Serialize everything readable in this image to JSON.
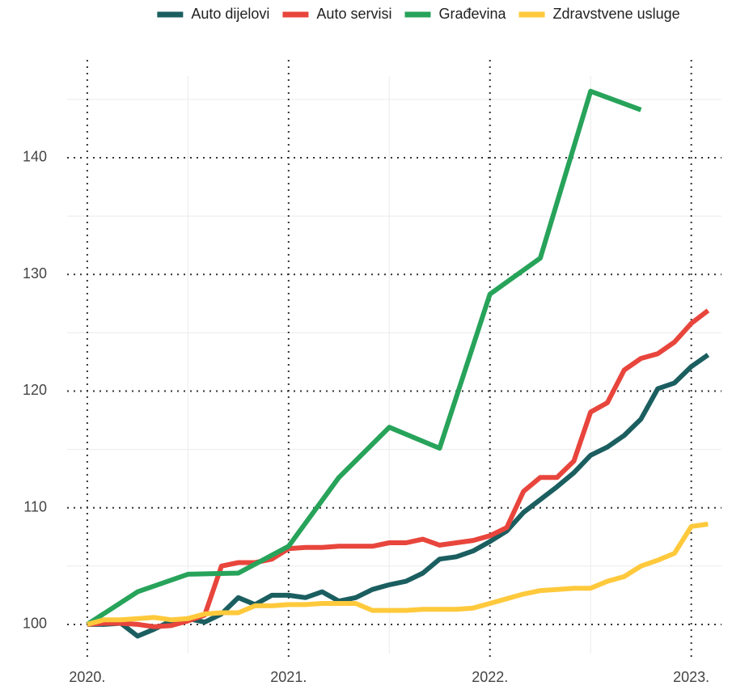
{
  "chart_data": {
    "type": "line",
    "x": [
      2020,
      2020.0833,
      2020.1667,
      2020.25,
      2020.3333,
      2020.4167,
      2020.5,
      2020.5833,
      2020.6667,
      2020.75,
      2020.8333,
      2020.9167,
      2021,
      2021.0833,
      2021.1667,
      2021.25,
      2021.3333,
      2021.4167,
      2021.5,
      2021.5833,
      2021.6667,
      2021.75,
      2021.8333,
      2021.9167,
      2022,
      2022.0833,
      2022.1667,
      2022.25,
      2022.3333,
      2022.4167,
      2022.5,
      2022.5833,
      2022.6667,
      2022.75,
      2022.8333,
      2022.9167,
      2023,
      2023.0833
    ],
    "series": [
      {
        "name": "Auto dijelovi",
        "color": "#1b5e60",
        "values": [
          100,
          100,
          100.1,
          99,
          99.6,
          100.3,
          100.5,
          100.2,
          100.9,
          102.3,
          101.7,
          102.5,
          102.5,
          102.3,
          102.8,
          102,
          102.3,
          103,
          103.4,
          103.7,
          104.4,
          105.6,
          105.8,
          106.3,
          107.1,
          108,
          109.6,
          110.7,
          111.8,
          113,
          114.5,
          115.2,
          116.2,
          117.6,
          120.2,
          120.7,
          122.1,
          123.1
        ]
      },
      {
        "name": "Auto servisi",
        "color": "#e8453c",
        "values": [
          100,
          100.1,
          100.1,
          100,
          99.8,
          99.9,
          100.3,
          100.8,
          105,
          105.3,
          105.3,
          105.6,
          106.5,
          106.6,
          106.6,
          106.7,
          106.7,
          106.7,
          107,
          107,
          107.3,
          106.8,
          107,
          107.2,
          107.6,
          108.3,
          111.4,
          112.6,
          112.6,
          114,
          118.2,
          119,
          121.8,
          122.8,
          123.2,
          124.2,
          125.8,
          126.9
        ]
      },
      {
        "name": "Građevina",
        "color": "#27a35a",
        "x": [
          2020,
          2020.25,
          2020.5,
          2020.75,
          2021,
          2021.25,
          2021.5,
          2021.75,
          2022,
          2022.25,
          2022.5,
          2022.75
        ],
        "values": [
          100,
          102.8,
          104.3,
          104.4,
          106.7,
          112.6,
          116.9,
          115.1,
          128.3,
          131.4,
          145.7,
          144.1
        ]
      },
      {
        "name": "Zdravstvene usluge",
        "color": "#ffc93c",
        "values": [
          100,
          100.4,
          100.4,
          100.5,
          100.6,
          100.4,
          100.5,
          100.9,
          101,
          101,
          101.6,
          101.6,
          101.7,
          101.7,
          101.8,
          101.8,
          101.8,
          101.2,
          101.2,
          101.2,
          101.3,
          101.3,
          101.3,
          101.4,
          101.8,
          102.2,
          102.6,
          102.9,
          103,
          103.1,
          103.1,
          103.7,
          104.1,
          105,
          105.5,
          106.1,
          108.4,
          108.6
        ]
      }
    ],
    "xlim": [
      2019.9,
      2023.15
    ],
    "ylim": [
      97.5,
      147
    ],
    "xticks": [
      {
        "value": 2020,
        "label": "2020."
      },
      {
        "value": 2021,
        "label": "2021."
      },
      {
        "value": 2022,
        "label": "2022."
      },
      {
        "value": 2023,
        "label": "2023."
      }
    ],
    "yticks": [
      100,
      110,
      120,
      130,
      140
    ],
    "xticks_minor": [
      2020.5,
      2021.5,
      2022.5
    ],
    "yticks_minor": [
      105,
      115,
      125,
      135,
      145
    ],
    "grid": true,
    "legend": "top"
  }
}
